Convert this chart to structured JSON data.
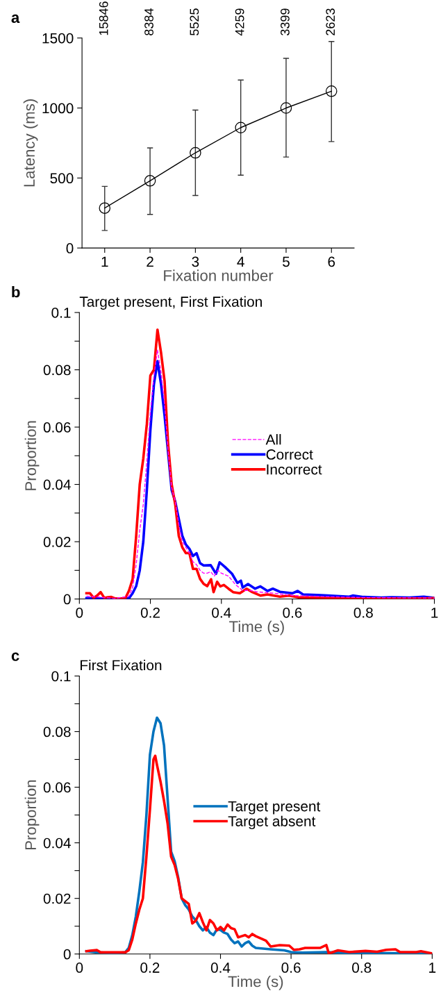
{
  "chart_data": [
    {
      "type": "line",
      "xlabel": "Fixation number",
      "ylabel": "Latency (ms)",
      "annotations": [
        "a",
        "15846",
        "8384",
        "5525",
        "4259",
        "3399",
        "2623"
      ],
      "x": [
        1,
        2,
        3,
        4,
        5,
        6
      ],
      "xlim": [
        0.5,
        6.5
      ],
      "xticks": [
        1,
        2,
        3,
        4,
        5,
        6
      ],
      "ylim": [
        0,
        1500
      ],
      "yticks": [
        0,
        500,
        1000,
        1500
      ],
      "marker": "circle",
      "grid": false,
      "legend": false,
      "series": [
        {
          "color": "#000000",
          "values": [
            285,
            480,
            680,
            860,
            1000,
            1120
          ],
          "errors": [
            [
              125,
              440
            ],
            [
              240,
              715
            ],
            [
              375,
              985
            ],
            [
              520,
              1200
            ],
            [
              650,
              1355
            ],
            [
              760,
              1475
            ]
          ]
        }
      ]
    },
    {
      "type": "line",
      "title": "Target present, First Fixation",
      "xlabel": "Time (s)",
      "ylabel": "Proportion",
      "annotations": [
        "b"
      ],
      "xlim": [
        0,
        1
      ],
      "xticks": [
        0,
        0.2,
        0.4,
        0.6,
        0.8,
        1
      ],
      "ylim": [
        0,
        0.1
      ],
      "yticks": [
        0,
        {
          "value": 0.01,
          "label": null
        },
        0.02,
        {
          "value": 0.03,
          "label": null
        },
        0.04,
        {
          "value": 0.05,
          "label": null
        },
        0.06,
        {
          "value": 0.07,
          "label": null
        },
        0.08,
        {
          "value": 0.09,
          "label": null
        },
        0.1
      ],
      "grid": false,
      "legend": "right",
      "marker": "none",
      "series": [
        {
          "name": "All",
          "color": "#ff00ff",
          "line_style": "dashed",
          "x": [
            0.02,
            0.1,
            0.14,
            0.15,
            0.16,
            0.17,
            0.18,
            0.19,
            0.2,
            0.21,
            0.22,
            0.23,
            0.24,
            0.25,
            0.26,
            0.27,
            0.28,
            0.29,
            0.3,
            0.31,
            0.32,
            0.33,
            0.34,
            0.35,
            0.36,
            0.37,
            0.38,
            0.39,
            0.4,
            0.42,
            0.44,
            0.46,
            0.48,
            0.5,
            0.55,
            0.6,
            0.65,
            0.7,
            0.8,
            0.9,
            1.0
          ],
          "values": [
            0.001,
            0.0002,
            0.001,
            0.004,
            0.012,
            0.024,
            0.033,
            0.048,
            0.065,
            0.078,
            0.087,
            0.079,
            0.068,
            0.052,
            0.039,
            0.034,
            0.026,
            0.02,
            0.018,
            0.016,
            0.013,
            0.012,
            0.01,
            0.009,
            0.009,
            0.0095,
            0.008,
            0.01,
            0.009,
            0.008,
            0.005,
            0.003,
            0.003,
            0.0025,
            0.002,
            0.0012,
            0.001,
            0.0008,
            0.0005,
            0.0004,
            0.0003
          ]
        },
        {
          "name": "Correct",
          "color": "#0000ff",
          "line_style": "solid",
          "x": [
            0.02,
            0.1,
            0.14,
            0.15,
            0.16,
            0.17,
            0.18,
            0.19,
            0.2,
            0.21,
            0.22,
            0.23,
            0.24,
            0.25,
            0.26,
            0.27,
            0.28,
            0.29,
            0.3,
            0.31,
            0.32,
            0.33,
            0.34,
            0.35,
            0.37,
            0.385,
            0.395,
            0.41,
            0.43,
            0.445,
            0.455,
            0.46,
            0.475,
            0.495,
            0.51,
            0.53,
            0.545,
            0.565,
            0.6,
            0.615,
            0.63,
            0.67,
            0.7,
            0.76,
            0.77,
            0.8,
            0.85,
            0.88,
            0.93,
            0.97,
            1.0
          ],
          "values": [
            0.0003,
            0,
            0.0003,
            0.002,
            0.0045,
            0.01,
            0.02,
            0.038,
            0.059,
            0.075,
            0.083,
            0.075,
            0.064,
            0.051,
            0.038,
            0.034,
            0.028,
            0.022,
            0.019,
            0.0175,
            0.015,
            0.016,
            0.0125,
            0.0117,
            0.0118,
            0.0088,
            0.0128,
            0.0112,
            0.0088,
            0.0056,
            0.0064,
            0.004,
            0.0052,
            0.0036,
            0.0044,
            0.0028,
            0.0036,
            0.0025,
            0.002,
            0.0028,
            0.0016,
            0.0014,
            0.0012,
            0.0008,
            0.0012,
            0.0007,
            0.0005,
            0.0006,
            0.0005,
            0.0008,
            0.0004
          ]
        },
        {
          "name": "Incorrect",
          "color": "#ff0000",
          "line_style": "solid",
          "x": [
            0.02,
            0.03,
            0.04,
            0.05,
            0.06,
            0.07,
            0.08,
            0.09,
            0.1,
            0.12,
            0.13,
            0.14,
            0.15,
            0.16,
            0.17,
            0.18,
            0.19,
            0.2,
            0.21,
            0.22,
            0.23,
            0.24,
            0.25,
            0.26,
            0.27,
            0.28,
            0.29,
            0.3,
            0.31,
            0.32,
            0.33,
            0.34,
            0.35,
            0.36,
            0.371,
            0.378,
            0.388,
            0.397,
            0.407,
            0.42,
            0.433,
            0.452,
            0.471,
            0.487,
            0.51,
            0.53,
            0.565,
            0.59,
            0.616,
            0.67,
            0.76,
            0.85,
            0.97,
            1.0
          ],
          "values": [
            0.002,
            0.002,
            0.0004,
            0.0012,
            0.0024,
            0.0004,
            0.0006,
            0.0007,
            0.0002,
            0.0002,
            0.0004,
            0.003,
            0.007,
            0.022,
            0.04,
            0.049,
            0.061,
            0.078,
            0.08,
            0.094,
            0.086,
            0.076,
            0.054,
            0.04,
            0.033,
            0.022,
            0.018,
            0.016,
            0.016,
            0.0105,
            0.0105,
            0.007,
            0.0053,
            0.0045,
            0.0069,
            0.0024,
            0.006,
            0.0044,
            0.0049,
            0.0036,
            0.0024,
            0.002,
            0.0036,
            0.0024,
            0.0012,
            0.0016,
            0.0008,
            0.0012,
            0.0006,
            0.0004,
            0.0002,
            0.0002,
            0.0002,
            0.0003
          ]
        }
      ]
    },
    {
      "type": "line",
      "title": "First Fixation",
      "xlabel": "Time (s)",
      "ylabel": "Proportion",
      "annotations": [
        "c"
      ],
      "xlim": [
        0,
        1
      ],
      "xticks": [
        0,
        0.2,
        0.4,
        0.6,
        0.8,
        1
      ],
      "ylim": [
        0,
        0.1
      ],
      "yticks": [
        0,
        {
          "value": 0.01,
          "label": null
        },
        0.02,
        {
          "value": 0.03,
          "label": null
        },
        0.04,
        {
          "value": 0.05,
          "label": null
        },
        0.06,
        {
          "value": 0.07,
          "label": null
        },
        0.08,
        {
          "value": 0.09,
          "label": null
        },
        0.1
      ],
      "grid": false,
      "legend": "right",
      "marker": "none",
      "series": [
        {
          "name": "Target present",
          "color": "#0072bd",
          "x": [
            0.02,
            0.05,
            0.1,
            0.13,
            0.14,
            0.15,
            0.16,
            0.17,
            0.18,
            0.19,
            0.2,
            0.21,
            0.22,
            0.23,
            0.24,
            0.25,
            0.26,
            0.27,
            0.28,
            0.29,
            0.3,
            0.31,
            0.32,
            0.33,
            0.34,
            0.35,
            0.36,
            0.37,
            0.38,
            0.39,
            0.4,
            0.41,
            0.42,
            0.43,
            0.44,
            0.45,
            0.46,
            0.47,
            0.48,
            0.49,
            0.5,
            0.542,
            0.581,
            0.6,
            0.633,
            0.699,
            0.765,
            0.857,
            0.923,
            1.0
          ],
          "values": [
            0.001,
            0.0006,
            0.0003,
            0.0006,
            0.0022,
            0.0068,
            0.0135,
            0.0226,
            0.033,
            0.05,
            0.0717,
            0.08,
            0.085,
            0.083,
            0.075,
            0.056,
            0.0368,
            0.0334,
            0.0276,
            0.02,
            0.0176,
            0.016,
            0.0135,
            0.0122,
            0.01,
            0.0085,
            0.0097,
            0.0077,
            0.0068,
            0.0089,
            0.0086,
            0.0077,
            0.0072,
            0.0052,
            0.0039,
            0.0045,
            0.0027,
            0.0039,
            0.0045,
            0.003,
            0.0022,
            0.0017,
            0.0013,
            0.0007,
            0.0005,
            0.0007,
            0.0003,
            0.0003,
            0.0003,
            0.0
          ]
        },
        {
          "name": "Target absent",
          "color": "#ff0000",
          "x": [
            0.02,
            0.03,
            0.05,
            0.06,
            0.1,
            0.13,
            0.14,
            0.15,
            0.16,
            0.17,
            0.18,
            0.19,
            0.2,
            0.21,
            0.215,
            0.22,
            0.23,
            0.24,
            0.25,
            0.26,
            0.27,
            0.28,
            0.29,
            0.3,
            0.31,
            0.32,
            0.33,
            0.34,
            0.35,
            0.36,
            0.37,
            0.38,
            0.39,
            0.4,
            0.41,
            0.42,
            0.43,
            0.44,
            0.45,
            0.46,
            0.47,
            0.48,
            0.49,
            0.5,
            0.529,
            0.542,
            0.568,
            0.595,
            0.608,
            0.624,
            0.64,
            0.66,
            0.683,
            0.7,
            0.707,
            0.733,
            0.765,
            0.811,
            0.844,
            0.87,
            0.896,
            0.909,
            0.955,
            0.968,
            1.0
          ],
          "values": [
            0.001,
            0.0012,
            0.0014,
            0.0006,
            0.0006,
            0.0006,
            0.0014,
            0.0052,
            0.011,
            0.016,
            0.02,
            0.035,
            0.052,
            0.07,
            0.0713,
            0.068,
            0.062,
            0.055,
            0.047,
            0.035,
            0.032,
            0.027,
            0.02,
            0.019,
            0.018,
            0.011,
            0.012,
            0.0147,
            0.0114,
            0.0085,
            0.0122,
            0.011,
            0.0085,
            0.0097,
            0.0085,
            0.0106,
            0.0093,
            0.0089,
            0.006,
            0.0064,
            0.0068,
            0.006,
            0.0072,
            0.0064,
            0.0048,
            0.0027,
            0.0032,
            0.003,
            0.0015,
            0.0017,
            0.0022,
            0.0022,
            0.0022,
            0.0032,
            0.0002,
            0.0013,
            0.0007,
            0.0011,
            0.0008,
            0.0015,
            0.0017,
            0.0007,
            0.0007,
            0.001,
            0.0002
          ]
        }
      ]
    }
  ]
}
